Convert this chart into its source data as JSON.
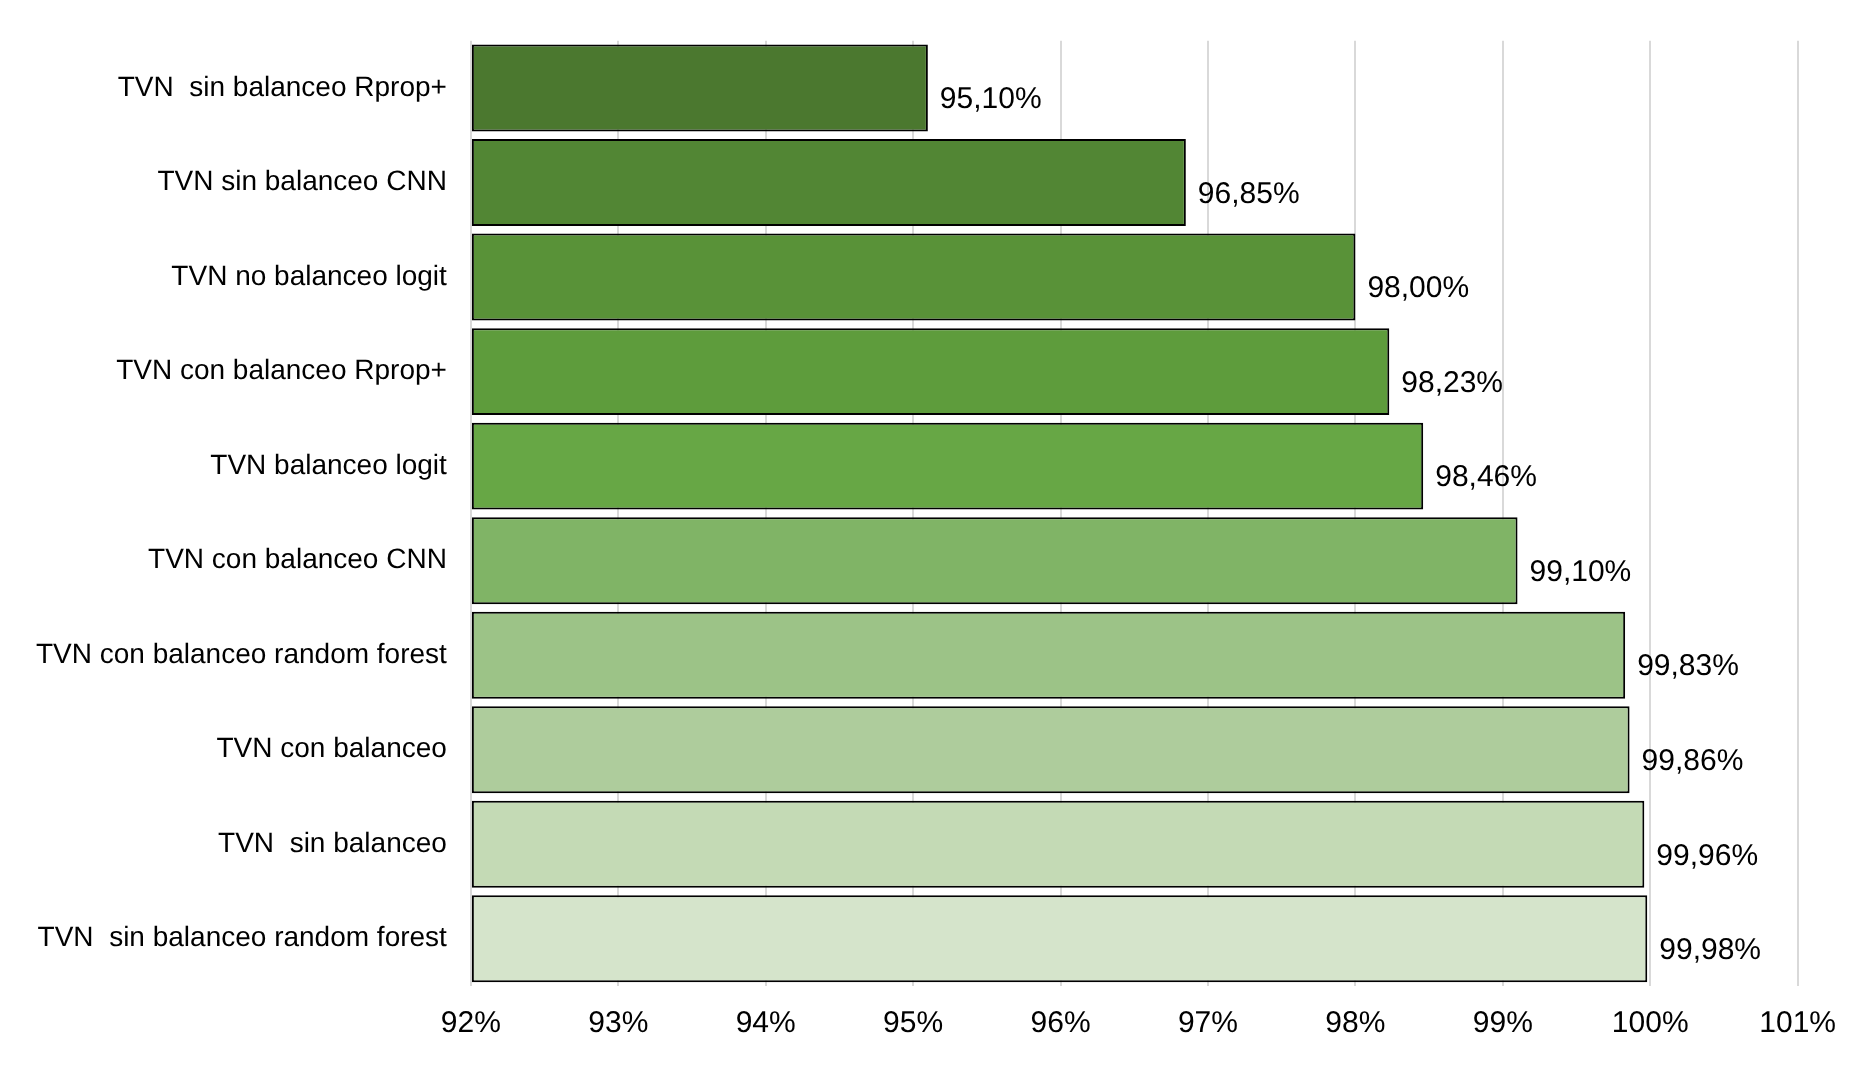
{
  "chart_data": {
    "type": "bar",
    "orientation": "horizontal",
    "categories": [
      "TVN  sin balanceo Rprop+",
      "TVN sin balanceo CNN",
      "TVN no balanceo logit",
      "TVN con balanceo Rprop+",
      "TVN balanceo logit",
      "TVN con balanceo CNN",
      "TVN con balanceo random forest",
      "TVN con balanceo",
      "TVN  sin balanceo",
      "TVN  sin balanceo random forest"
    ],
    "values": [
      95.1,
      96.85,
      98.0,
      98.23,
      98.46,
      99.1,
      99.83,
      99.86,
      99.96,
      99.98
    ],
    "value_labels": [
      "95,10%",
      "96,85%",
      "98,00%",
      "98,23%",
      "98,46%",
      "99,10%",
      "99,83%",
      "99,86%",
      "99,96%",
      "99,98%"
    ],
    "colors": [
      "#4b782f",
      "#528634",
      "#599238",
      "#5e9c3c",
      "#67a745",
      "#80b466",
      "#9cc387",
      "#aecc9c",
      "#c4dab5",
      "#d5e4cb"
    ],
    "xlim": [
      92,
      101
    ],
    "xticks": [
      {
        "value": 92,
        "label": "92%"
      },
      {
        "value": 93,
        "label": "93%"
      },
      {
        "value": 94,
        "label": "94%"
      },
      {
        "value": 95,
        "label": "95%"
      },
      {
        "value": 96,
        "label": "96%"
      },
      {
        "value": 97,
        "label": "97%"
      },
      {
        "value": 98,
        "label": "98%"
      },
      {
        "value": 99,
        "label": "99%"
      },
      {
        "value": 100,
        "label": "100%"
      },
      {
        "value": 101,
        "label": "101%"
      }
    ],
    "grid": "x"
  }
}
